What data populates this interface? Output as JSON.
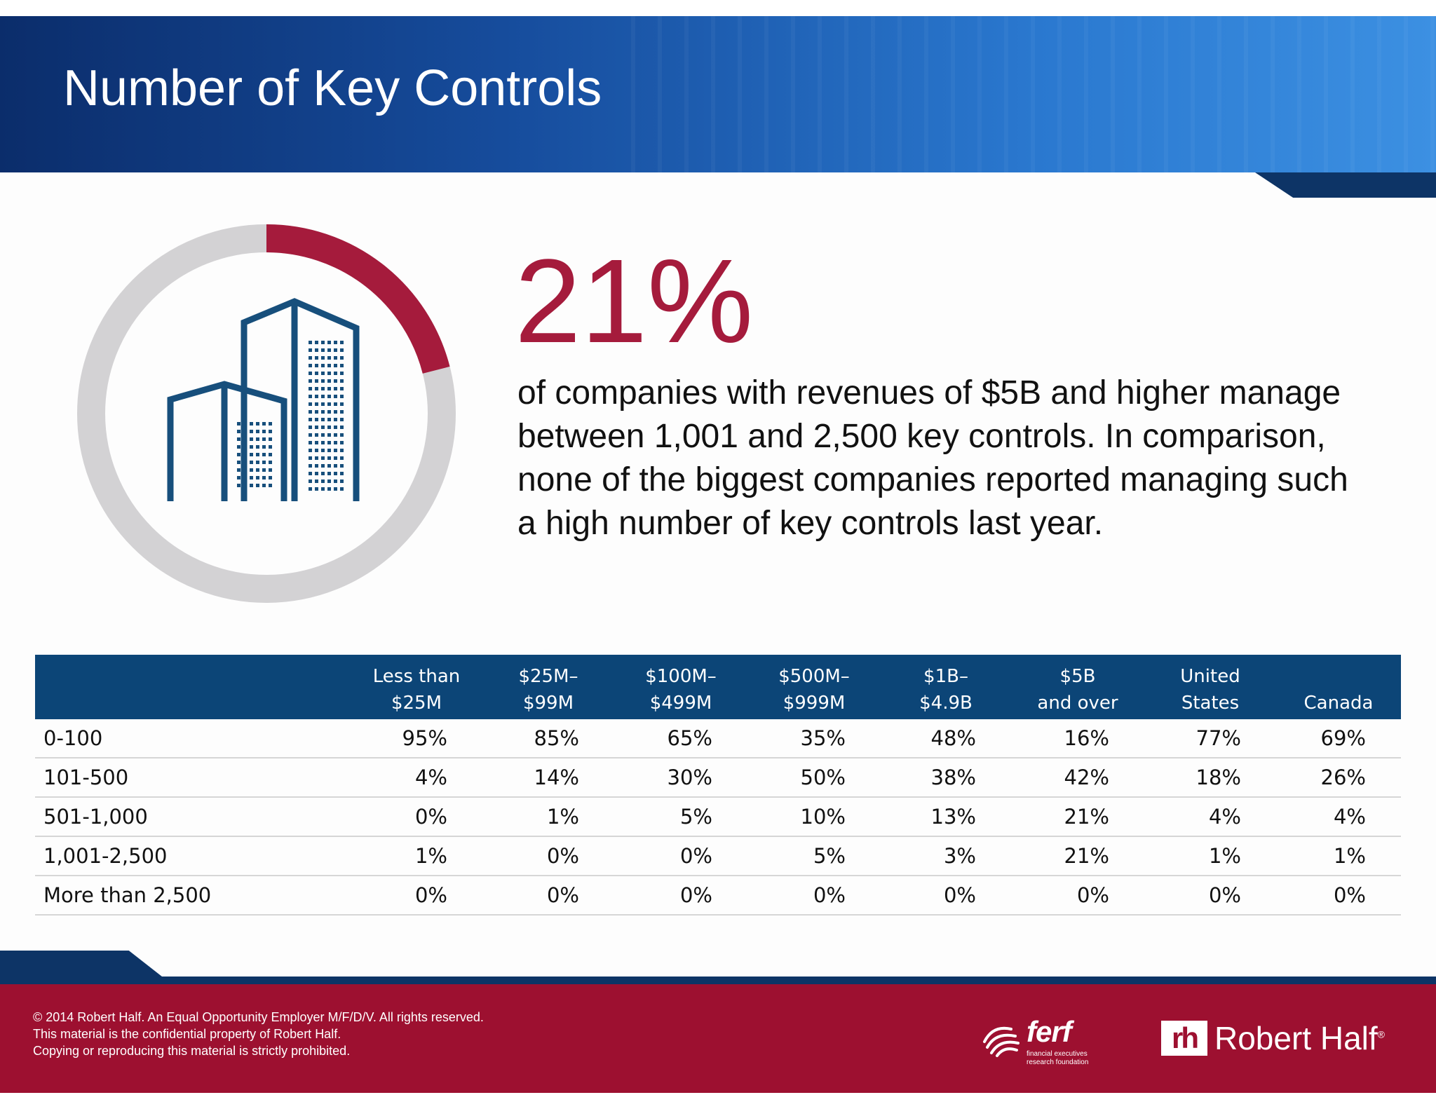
{
  "header": {
    "title": "Number of Key Controls"
  },
  "highlight": {
    "stat": "21%",
    "stat_fraction": 0.21,
    "description": "of companies with revenues of $5B and higher manage between 1,001 and 2,500 key controls. In comparison, none of the biggest companies reported managing such a high number of key controls last year.",
    "icon": "office-buildings-icon"
  },
  "colors": {
    "header_blue": "#164c9c",
    "accent_red": "#a51b3c",
    "table_header": "#0c4577",
    "footer_red": "#9d1030",
    "donut_gray": "#d3d2d4",
    "building_blue": "#174f7c"
  },
  "table": {
    "columns": [
      [
        "",
        ""
      ],
      [
        "Less than",
        "$25M"
      ],
      [
        "$25M–",
        "$99M"
      ],
      [
        "$100M–",
        "$499M"
      ],
      [
        "$500M–",
        "$999M"
      ],
      [
        "$1B–",
        "$4.9B"
      ],
      [
        "$5B",
        "and over"
      ],
      [
        "United",
        "States"
      ],
      [
        "",
        "Canada"
      ]
    ],
    "rows": [
      [
        "0-100",
        "95%",
        "85%",
        "65%",
        "35%",
        "48%",
        "16%",
        "77%",
        "69%"
      ],
      [
        "101-500",
        "4%",
        "14%",
        "30%",
        "50%",
        "38%",
        "42%",
        "18%",
        "26%"
      ],
      [
        "501-1,000",
        "0%",
        "1%",
        "5%",
        "10%",
        "13%",
        "21%",
        "4%",
        "4%"
      ],
      [
        "1,001-2,500",
        "1%",
        "0%",
        "0%",
        "5%",
        "3%",
        "21%",
        "1%",
        "1%"
      ],
      [
        "More than 2,500",
        "0%",
        "0%",
        "0%",
        "0%",
        "0%",
        "0%",
        "0%",
        "0%"
      ]
    ]
  },
  "footer": {
    "legal": [
      "© 2014 Robert Half. An Equal Opportunity Employer M/F/D/V. All rights reserved.",
      "This material is the confidential property of Robert Half.",
      "Copying or reproducing this material is strictly prohibited."
    ],
    "ferf": {
      "word": "ferf",
      "sub_line1": "financial executives",
      "sub_line2": "research foundation"
    },
    "robert_half": {
      "mark": "rh",
      "name": "Robert Half",
      "reg": "®"
    }
  }
}
